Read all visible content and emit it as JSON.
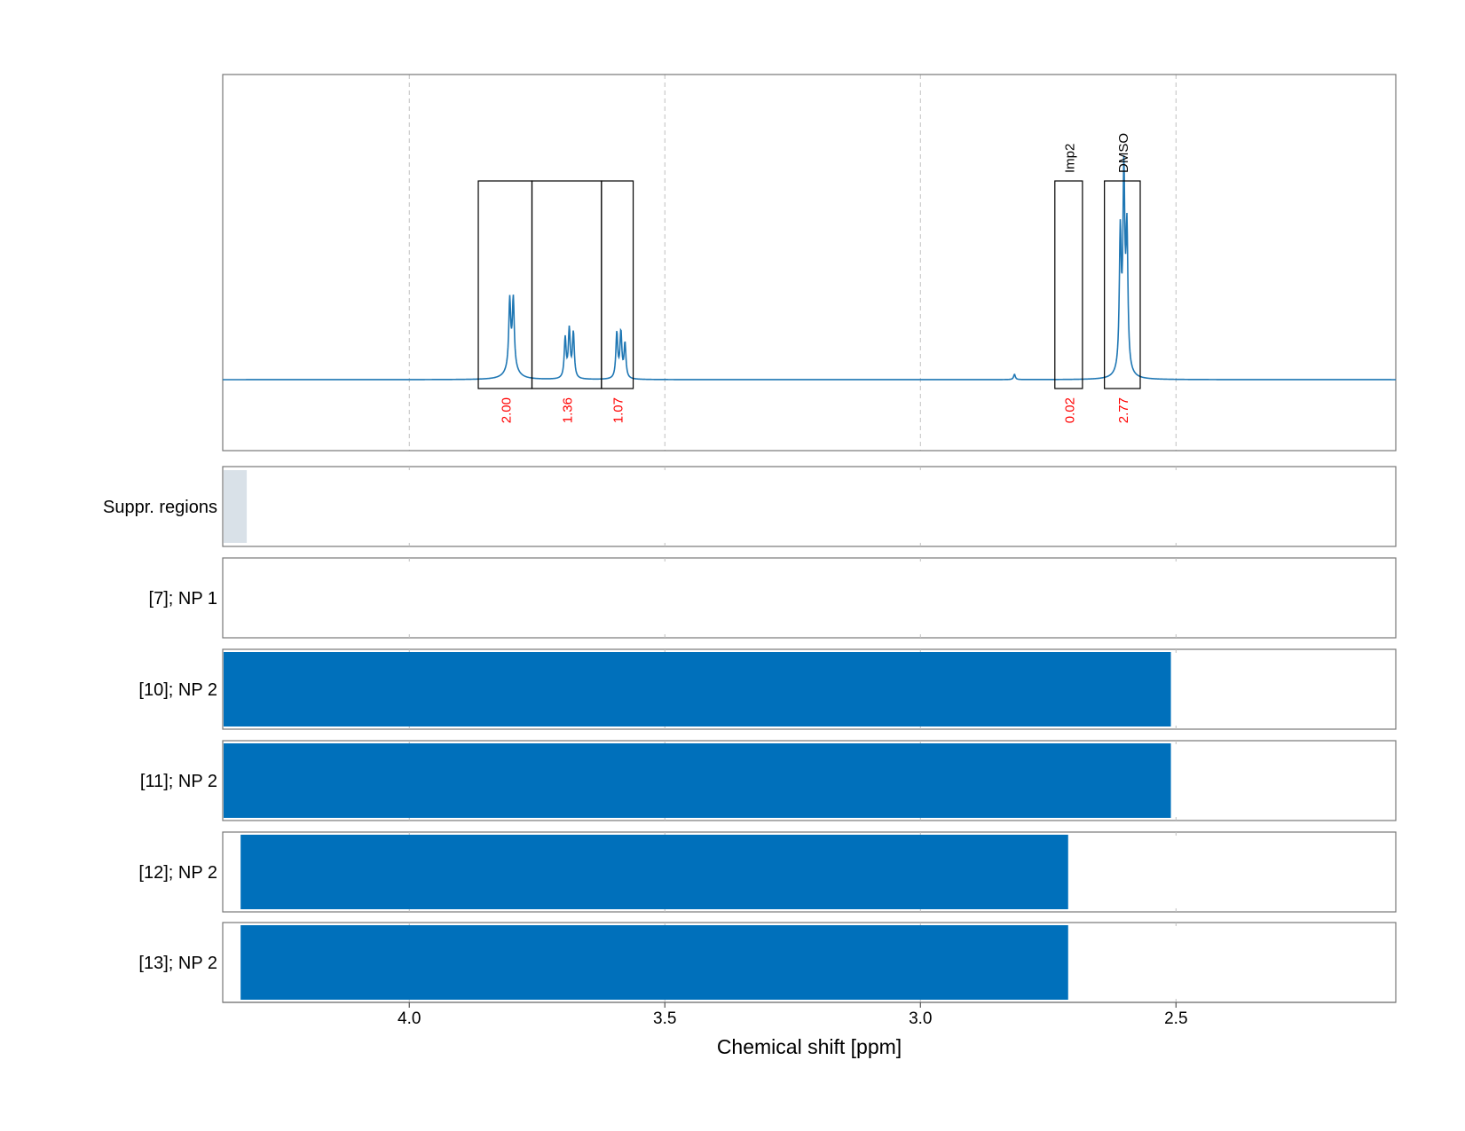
{
  "chart_data": {
    "type": "line",
    "xlabel": "Chemical shift [ppm]",
    "x_axis": {
      "range": [
        4.365,
        2.07
      ],
      "reversed": true,
      "ticks": [
        4.0,
        3.5,
        3.0,
        2.5
      ],
      "tick_labels": [
        "4.0",
        "3.5",
        "3.0",
        "2.5"
      ],
      "grid": true
    },
    "colors": {
      "spectrum": "#1f77b4",
      "bars": "#0070bb",
      "integral_labels": "#ff0000",
      "suppressed": "#d9e1e8",
      "grid": "#c0c0c0"
    },
    "spectrum": {
      "baseline": 0,
      "peaks": [
        {
          "center": 3.8035,
          "height": 0.25,
          "width": 0.0022
        },
        {
          "center": 3.7965,
          "height": 0.25,
          "width": 0.0022
        },
        {
          "center": 3.7995,
          "height": 0.05,
          "width": 0.012
        },
        {
          "center": 3.695,
          "height": 0.15,
          "width": 0.0022
        },
        {
          "center": 3.687,
          "height": 0.18,
          "width": 0.0022
        },
        {
          "center": 3.679,
          "height": 0.17,
          "width": 0.0022
        },
        {
          "center": 3.594,
          "height": 0.17,
          "width": 0.0022
        },
        {
          "center": 3.586,
          "height": 0.17,
          "width": 0.0022
        },
        {
          "center": 3.578,
          "height": 0.13,
          "width": 0.0022
        },
        {
          "center": 2.816,
          "height": 0.02,
          "width": 0.002
        },
        {
          "center": 2.609,
          "height": 0.5,
          "width": 0.0022
        },
        {
          "center": 2.602,
          "height": 0.7,
          "width": 0.0022
        },
        {
          "center": 2.596,
          "height": 0.5,
          "width": 0.0022
        },
        {
          "center": 2.602,
          "height": 0.04,
          "width": 0.01
        }
      ]
    },
    "integration_regions": [
      {
        "from": 3.865,
        "to": 3.76,
        "value": "2.00",
        "label": ""
      },
      {
        "from": 3.76,
        "to": 3.624,
        "value": "1.36",
        "label": ""
      },
      {
        "from": 3.624,
        "to": 3.562,
        "value": "1.07",
        "label": ""
      },
      {
        "from": 2.737,
        "to": 2.683,
        "value": "0.02",
        "label": "Imp2"
      },
      {
        "from": 2.64,
        "to": 2.57,
        "value": "2.77",
        "label": "DMSO"
      }
    ],
    "tracks": [
      {
        "label": "Suppr. regions",
        "kind": "suppressed",
        "from": 4.365,
        "to": 4.318
      },
      {
        "label": "[7]; NP 1",
        "kind": "bar",
        "from": null,
        "to": null
      },
      {
        "label": "[10]; NP 2",
        "kind": "bar",
        "from": 4.365,
        "to": 2.51
      },
      {
        "label": "[11]; NP 2",
        "kind": "bar",
        "from": 4.365,
        "to": 2.51
      },
      {
        "label": "[12]; NP 2",
        "kind": "bar",
        "from": 4.33,
        "to": 2.711
      },
      {
        "label": "[13]; NP 2",
        "kind": "bar",
        "from": 4.33,
        "to": 2.711
      }
    ]
  }
}
